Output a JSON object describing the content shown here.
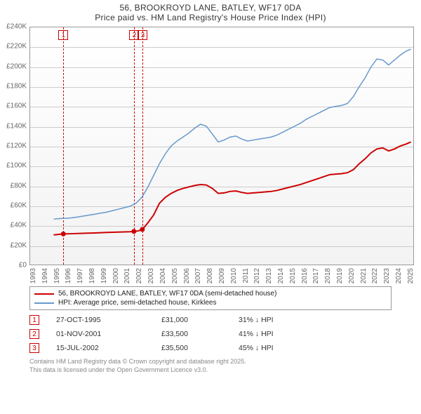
{
  "title": {
    "line1": "56, BROOKROYD LANE, BATLEY, WF17 0DA",
    "line2": "Price paid vs. HM Land Registry's House Price Index (HPI)"
  },
  "chart": {
    "type": "line",
    "background_top": "#ffffff",
    "background_bottom": "#f3f3f3",
    "border_color": "#999999",
    "grid_color": "#cccccc",
    "text_color": "#666666",
    "xlim": [
      1993,
      2025.6
    ],
    "ylim": [
      0,
      240000
    ],
    "ytick_step": 20000,
    "ytick_prefix": "£",
    "ytick_suffix": "K",
    "xticks": [
      1993,
      1994,
      1995,
      1996,
      1997,
      1998,
      1999,
      2000,
      2001,
      2002,
      2003,
      2004,
      2005,
      2006,
      2007,
      2008,
      2009,
      2010,
      2011,
      2012,
      2013,
      2014,
      2015,
      2016,
      2017,
      2018,
      2019,
      2020,
      2021,
      2022,
      2023,
      2024,
      2025
    ],
    "series": [
      {
        "id": "price_paid",
        "label": "56, BROOKROYD LANE, BATLEY, WF17 0DA (semi-detached house)",
        "color": "#cc0000",
        "width": 2,
        "points": [
          [
            1995.0,
            30000
          ],
          [
            1995.82,
            31000
          ],
          [
            1996.5,
            31200
          ],
          [
            1997.5,
            31600
          ],
          [
            1998.5,
            32000
          ],
          [
            1999.5,
            32500
          ],
          [
            2000.5,
            32800
          ],
          [
            2001.5,
            33200
          ],
          [
            2001.83,
            33500
          ],
          [
            2002.2,
            34000
          ],
          [
            2002.54,
            35500
          ],
          [
            2003.0,
            42000
          ],
          [
            2003.5,
            50000
          ],
          [
            2004.0,
            62000
          ],
          [
            2004.5,
            68000
          ],
          [
            2005.0,
            72000
          ],
          [
            2005.5,
            75000
          ],
          [
            2006.0,
            77000
          ],
          [
            2006.5,
            78500
          ],
          [
            2007.0,
            80000
          ],
          [
            2007.5,
            81000
          ],
          [
            2008.0,
            80500
          ],
          [
            2008.5,
            77000
          ],
          [
            2009.0,
            72000
          ],
          [
            2009.5,
            72500
          ],
          [
            2010.0,
            74000
          ],
          [
            2010.5,
            74500
          ],
          [
            2011.0,
            73000
          ],
          [
            2011.5,
            72000
          ],
          [
            2012.0,
            72500
          ],
          [
            2012.5,
            73000
          ],
          [
            2013.0,
            73500
          ],
          [
            2013.5,
            74000
          ],
          [
            2014.0,
            75000
          ],
          [
            2014.5,
            76500
          ],
          [
            2015.0,
            78000
          ],
          [
            2015.5,
            79500
          ],
          [
            2016.0,
            81000
          ],
          [
            2016.5,
            83000
          ],
          [
            2017.0,
            85000
          ],
          [
            2017.5,
            87000
          ],
          [
            2018.0,
            89000
          ],
          [
            2018.5,
            91000
          ],
          [
            2019.0,
            91500
          ],
          [
            2019.5,
            92000
          ],
          [
            2020.0,
            93000
          ],
          [
            2020.5,
            96000
          ],
          [
            2021.0,
            102000
          ],
          [
            2021.5,
            107000
          ],
          [
            2022.0,
            113000
          ],
          [
            2022.5,
            117000
          ],
          [
            2023.0,
            118000
          ],
          [
            2023.5,
            115000
          ],
          [
            2024.0,
            117000
          ],
          [
            2024.5,
            120000
          ],
          [
            2025.0,
            122000
          ],
          [
            2025.4,
            124000
          ]
        ],
        "markers": [
          [
            1995.82,
            31000
          ],
          [
            2001.83,
            33500
          ],
          [
            2002.54,
            35500
          ]
        ]
      },
      {
        "id": "hpi",
        "label": "HPI: Average price, semi-detached house, Kirklees",
        "color": "#6699cc",
        "width": 1.5,
        "points": [
          [
            1995.0,
            46000
          ],
          [
            1995.5,
            46500
          ],
          [
            1996.0,
            46800
          ],
          [
            1996.5,
            47200
          ],
          [
            1997.0,
            48000
          ],
          [
            1997.5,
            49000
          ],
          [
            1998.0,
            50000
          ],
          [
            1998.5,
            51000
          ],
          [
            1999.0,
            52000
          ],
          [
            1999.5,
            53000
          ],
          [
            2000.0,
            54500
          ],
          [
            2000.5,
            56000
          ],
          [
            2001.0,
            57500
          ],
          [
            2001.5,
            59000
          ],
          [
            2002.0,
            62000
          ],
          [
            2002.5,
            68000
          ],
          [
            2003.0,
            78000
          ],
          [
            2003.5,
            90000
          ],
          [
            2004.0,
            102000
          ],
          [
            2004.5,
            112000
          ],
          [
            2005.0,
            120000
          ],
          [
            2005.5,
            125000
          ],
          [
            2006.0,
            129000
          ],
          [
            2006.5,
            133000
          ],
          [
            2007.0,
            138000
          ],
          [
            2007.5,
            142000
          ],
          [
            2008.0,
            140000
          ],
          [
            2008.5,
            132000
          ],
          [
            2009.0,
            124000
          ],
          [
            2009.5,
            126000
          ],
          [
            2010.0,
            129000
          ],
          [
            2010.5,
            130000
          ],
          [
            2011.0,
            127000
          ],
          [
            2011.5,
            125000
          ],
          [
            2012.0,
            126000
          ],
          [
            2012.5,
            127000
          ],
          [
            2013.0,
            128000
          ],
          [
            2013.5,
            129000
          ],
          [
            2014.0,
            131000
          ],
          [
            2014.5,
            134000
          ],
          [
            2015.0,
            137000
          ],
          [
            2015.5,
            140000
          ],
          [
            2016.0,
            143000
          ],
          [
            2016.5,
            147000
          ],
          [
            2017.0,
            150000
          ],
          [
            2017.5,
            153000
          ],
          [
            2018.0,
            156000
          ],
          [
            2018.5,
            159000
          ],
          [
            2019.0,
            160000
          ],
          [
            2019.5,
            161000
          ],
          [
            2020.0,
            163000
          ],
          [
            2020.5,
            170000
          ],
          [
            2021.0,
            180000
          ],
          [
            2021.5,
            189000
          ],
          [
            2022.0,
            200000
          ],
          [
            2022.5,
            208000
          ],
          [
            2023.0,
            207000
          ],
          [
            2023.5,
            202000
          ],
          [
            2024.0,
            207000
          ],
          [
            2024.5,
            212000
          ],
          [
            2025.0,
            216000
          ],
          [
            2025.4,
            218000
          ]
        ]
      }
    ],
    "marker_lines": [
      {
        "num": "1",
        "x": 1995.82,
        "color": "#cc0000"
      },
      {
        "num": "2",
        "x": 2001.83,
        "color": "#cc0000"
      },
      {
        "num": "3",
        "x": 2002.54,
        "color": "#cc0000"
      }
    ]
  },
  "legend": [
    {
      "color": "#cc0000",
      "label": "56, BROOKROYD LANE, BATLEY, WF17 0DA (semi-detached house)"
    },
    {
      "color": "#6699cc",
      "label": "HPI: Average price, semi-detached house, Kirklees"
    }
  ],
  "events": [
    {
      "num": "1",
      "date": "27-OCT-1995",
      "price": "£31,000",
      "pct": "31% ↓ HPI"
    },
    {
      "num": "2",
      "date": "01-NOV-2001",
      "price": "£33,500",
      "pct": "41% ↓ HPI"
    },
    {
      "num": "3",
      "date": "15-JUL-2002",
      "price": "£35,500",
      "pct": "45% ↓ HPI"
    }
  ],
  "footer": {
    "line1": "Contains HM Land Registry data © Crown copyright and database right 2025.",
    "line2": "This data is licensed under the Open Government Licence v3.0."
  }
}
